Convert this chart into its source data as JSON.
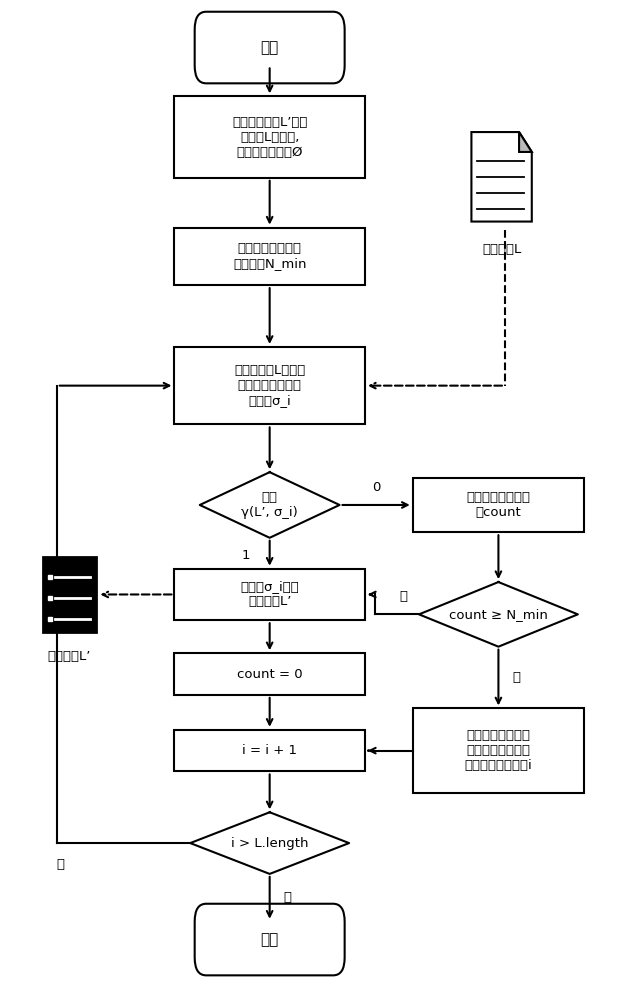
{
  "bg_color": "#ffffff",
  "line_color": "#000000",
  "fig_width": 6.41,
  "fig_height": 10.0,
  "start_text": "开始",
  "end_text": "结束",
  "box1_text": "定义采样日志L’为事\n件日志L的子集,\n其初始值为空集Ø",
  "box2_text": "确定最小连续遍历\n样本数量N_min",
  "box3_text": "从事件日志L中按轨\n迹索引顺序取出一\n条轨迹σ_i",
  "diamond1_text": "计算\nγ(L’, σ_i)",
  "box4_text": "记录重复的轨迹数\n量count",
  "diamond2_text": "count ≥ N_min",
  "box5_text": "将轨迹σ_i加入\n采样日志L’",
  "box6_text": "count = 0",
  "box7_text": "i = i + 1",
  "box8_text": "使用二进制指数跳\n跃算法计算下一条\n要遍历的轨迹索引i",
  "diamond3_text": "i > L.length",
  "doc_label": "事件日志L",
  "log_label": "采样日志L’"
}
